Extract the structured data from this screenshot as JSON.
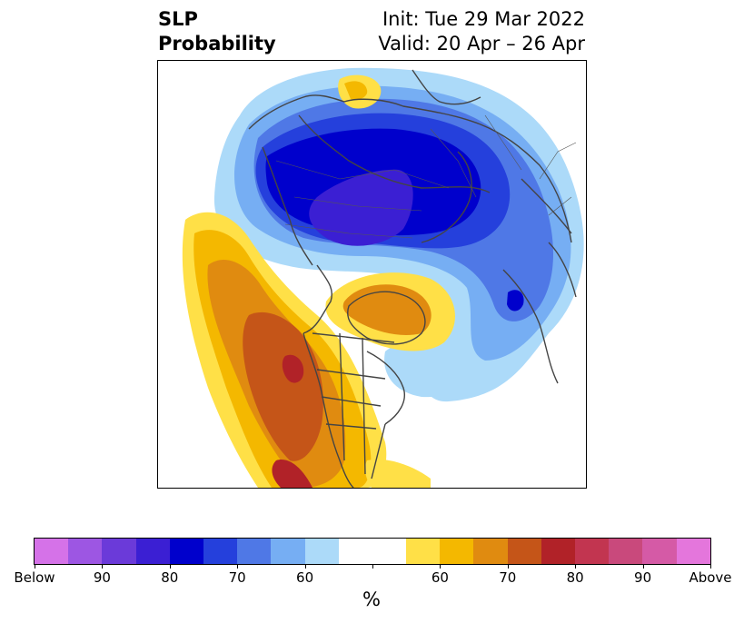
{
  "title": {
    "left_line1": "SLP",
    "left_line2": "Probability",
    "right_line1": "Init: Tue 29 Mar 2022",
    "right_line2": "Valid: 20 Apr – 26 Apr"
  },
  "colorbar": {
    "colors": [
      "#d572e8",
      "#9d56e3",
      "#6b3ad9",
      "#3b1fd3",
      "#0000cc",
      "#2540dc",
      "#4f78e6",
      "#76aef3",
      "#acdaf9",
      "#ffffff",
      "#ffe047",
      "#f4b800",
      "#e08b10",
      "#c55518",
      "#b12228",
      "#c23550",
      "#c9497c",
      "#d55aa6",
      "#e476dc"
    ],
    "segment_widths": [
      1,
      1,
      1,
      1,
      1,
      1,
      1,
      1,
      1,
      2,
      1,
      1,
      1,
      1,
      1,
      1,
      1,
      1,
      1
    ],
    "tick_labels": [
      "Below",
      "90",
      "80",
      "70",
      "60",
      "",
      "60",
      "70",
      "80",
      "90",
      "Above"
    ],
    "units": "%"
  },
  "map": {
    "below_normal_color_scale": [
      "#acdaf9",
      "#76aef3",
      "#4f78e6",
      "#2540dc",
      "#0000cc",
      "#3b1fd3"
    ],
    "above_normal_color_scale": [
      "#ffe047",
      "#f4b800",
      "#e08b10",
      "#c55518",
      "#b12228"
    ],
    "coastline_color": "#444444"
  }
}
